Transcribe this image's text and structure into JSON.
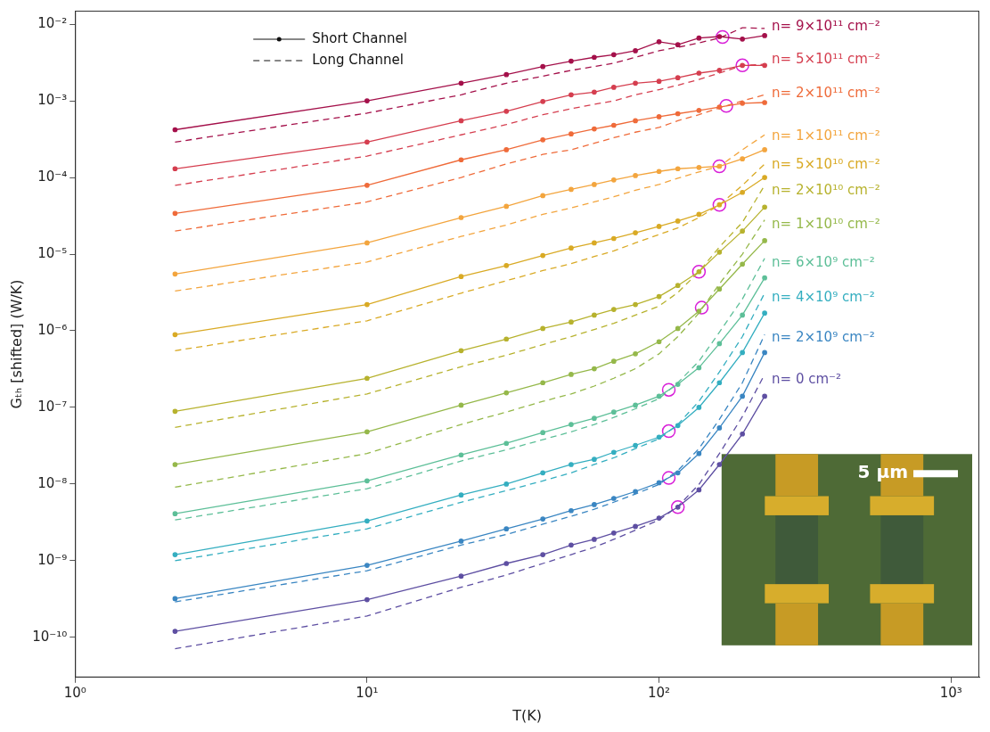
{
  "chart_data": {
    "type": "line",
    "x_label": "T(K)",
    "y_label": "Gₜₕ [shifted] (W/K)",
    "log": true,
    "grid": false,
    "legend": "upper left",
    "x": [
      2.2,
      10,
      21,
      30,
      40,
      50,
      60,
      70,
      83,
      100,
      116,
      137,
      161,
      193,
      230
    ],
    "xlim": [
      1,
      1250
    ],
    "xticks": [
      {
        "value": 1,
        "label": "10⁰"
      },
      {
        "value": 10,
        "label": "10¹"
      },
      {
        "value": 100,
        "label": "10²"
      },
      {
        "value": 1000,
        "label": "10³"
      }
    ],
    "ylim": [
      3e-11,
      0.015
    ],
    "yticks": [
      {
        "value": 1e-10,
        "label": "10⁻¹⁰"
      },
      {
        "value": 1e-09,
        "label": "10⁻⁹"
      },
      {
        "value": 1e-08,
        "label": "10⁻⁸"
      },
      {
        "value": 1e-07,
        "label": "10⁻⁷"
      },
      {
        "value": 1e-06,
        "label": "10⁻⁶"
      },
      {
        "value": 1e-05,
        "label": "10⁻⁵"
      },
      {
        "value": 0.0001,
        "label": "10⁻⁴"
      },
      {
        "value": 0.001,
        "label": "10⁻³"
      },
      {
        "value": 0.01,
        "label": "10⁻²"
      }
    ],
    "groups": [
      {
        "label": "n= 9×10¹¹ cm⁻²",
        "color": "#a4104a",
        "series": [
          {
            "name": "Short Channel",
            "line_style": "solid",
            "marker": "circle",
            "values": [
              0.00042,
              0.001,
              0.0017,
              0.0022,
              0.0028,
              0.0033,
              0.0037,
              0.004,
              0.0045,
              0.0059,
              0.0054,
              0.0066,
              0.0069,
              0.0064,
              0.0071
            ]
          },
          {
            "name": "Long Channel",
            "line_style": "dashed",
            "marker": "none",
            "values": [
              0.00029,
              0.00069,
              0.0012,
              0.0017,
              0.0021,
              0.0025,
              0.0028,
              0.0031,
              0.0037,
              0.0045,
              0.005,
              0.0057,
              0.0066,
              0.009,
              0.0088
            ]
          }
        ]
      },
      {
        "label": "n= 5×10¹¹ cm⁻²",
        "color": "#d53e4f",
        "series": [
          {
            "name": "Short Channel",
            "line_style": "solid",
            "marker": "circle",
            "values": [
              0.00013,
              0.00029,
              0.00055,
              0.00073,
              0.00098,
              0.0012,
              0.0013,
              0.0015,
              0.0017,
              0.0018,
              0.002,
              0.0023,
              0.0025,
              0.0029,
              0.0029
            ]
          },
          {
            "name": "Long Channel",
            "line_style": "dashed",
            "marker": "none",
            "values": [
              7.9e-05,
              0.00019,
              0.00036,
              0.00049,
              0.00066,
              0.00079,
              0.0009,
              0.001,
              0.0012,
              0.0014,
              0.0016,
              0.0019,
              0.0023,
              0.0029,
              0.003
            ]
          }
        ]
      },
      {
        "label": "n= 2×10¹¹ cm⁻²",
        "color": "#ef6b3a",
        "series": [
          {
            "name": "Short Channel",
            "line_style": "solid",
            "marker": "circle",
            "values": [
              3.4e-05,
              7.9e-05,
              0.00017,
              0.00023,
              0.00031,
              0.00037,
              0.00043,
              0.00048,
              0.00055,
              0.00062,
              0.00068,
              0.00075,
              0.00083,
              0.00093,
              0.00095
            ]
          },
          {
            "name": "Long Channel",
            "line_style": "dashed",
            "marker": "none",
            "values": [
              2e-05,
              4.8e-05,
              0.0001,
              0.00015,
              0.0002,
              0.00023,
              0.00028,
              0.00033,
              0.00039,
              0.00045,
              0.00055,
              0.00066,
              0.00081,
              0.001,
              0.0012
            ]
          }
        ]
      },
      {
        "label": "n= 1×10¹¹ cm⁻²",
        "color": "#f3a53e",
        "series": [
          {
            "name": "Short Channel",
            "line_style": "solid",
            "marker": "circle",
            "values": [
              5.5e-06,
              1.4e-05,
              3e-05,
              4.2e-05,
              5.8e-05,
              7e-05,
              8.1e-05,
              9.3e-05,
              0.000106,
              0.00012,
              0.00013,
              0.000135,
              0.00014,
              0.000175,
              0.00023
            ]
          },
          {
            "name": "Long Channel",
            "line_style": "dashed",
            "marker": "none",
            "values": [
              3.3e-06,
              7.9e-06,
              1.7e-05,
              2.4e-05,
              3.3e-05,
              4e-05,
              4.8e-05,
              5.6e-05,
              6.8e-05,
              8.1e-05,
              9.8e-05,
              0.000118,
              0.00014,
              0.00023,
              0.00036
            ]
          }
        ]
      },
      {
        "label": "n= 5×10¹⁰ cm⁻²",
        "color": "#d9aa25",
        "series": [
          {
            "name": "Short Channel",
            "line_style": "solid",
            "marker": "circle",
            "values": [
              8.9e-07,
              2.2e-06,
              5.1e-06,
              7.1e-06,
              9.6e-06,
              1.2e-05,
              1.4e-05,
              1.6e-05,
              1.9e-05,
              2.3e-05,
              2.7e-05,
              3.3e-05,
              4.4e-05,
              6.4e-05,
              0.0001
            ]
          },
          {
            "name": "Long Channel",
            "line_style": "dashed",
            "marker": "none",
            "values": [
              5.5e-07,
              1.35e-06,
              3.1e-06,
              4.5e-06,
              6.1e-06,
              7.5e-06,
              9.3e-06,
              1.1e-05,
              1.4e-05,
              1.8e-05,
              2.2e-05,
              3e-05,
              4.4e-05,
              7.9e-05,
              0.00015
            ]
          }
        ]
      },
      {
        "label": "n= 2×10¹⁰ cm⁻²",
        "color": "#b7b22e",
        "series": [
          {
            "name": "Short Channel",
            "line_style": "solid",
            "marker": "circle",
            "values": [
              8.9e-08,
              2.4e-07,
              5.5e-07,
              7.8e-07,
              1.07e-06,
              1.3e-06,
              1.6e-06,
              1.9e-06,
              2.2e-06,
              2.8e-06,
              3.9e-06,
              5.9e-06,
              1.06e-05,
              2e-05,
              4.1e-05
            ]
          },
          {
            "name": "Long Channel",
            "line_style": "dashed",
            "marker": "none",
            "values": [
              5.5e-08,
              1.5e-07,
              3.4e-07,
              4.8e-07,
              6.6e-07,
              8.4e-07,
              1.04e-06,
              1.25e-06,
              1.6e-06,
              2.1e-06,
              3.15e-06,
              5.9e-06,
              1.24e-05,
              2.6e-05,
              7.9e-05
            ]
          }
        ]
      },
      {
        "label": "n= 1×10¹⁰ cm⁻²",
        "color": "#95b84a",
        "series": [
          {
            "name": "Short Channel",
            "line_style": "solid",
            "marker": "circle",
            "values": [
              1.8e-08,
              4.8e-08,
              1.07e-07,
              1.55e-07,
              2.1e-07,
              2.7e-07,
              3.2e-07,
              4e-07,
              5e-07,
              7.2e-07,
              1.07e-06,
              1.8e-06,
              3.5e-06,
              7.4e-06,
              1.5e-05
            ]
          },
          {
            "name": "Long Channel",
            "line_style": "dashed",
            "marker": "none",
            "values": [
              9.1e-09,
              2.5e-08,
              6e-08,
              8.7e-08,
              1.2e-07,
              1.5e-07,
              1.9e-07,
              2.4e-07,
              3.2e-07,
              5e-07,
              8.4e-07,
              1.7e-06,
              4.1e-06,
              1e-05,
              2.8e-05
            ]
          }
        ]
      },
      {
        "label": "n= 6×10⁹ cm⁻²",
        "color": "#5dbf98",
        "series": [
          {
            "name": "Short Channel",
            "line_style": "solid",
            "marker": "circle",
            "values": [
              4.1e-09,
              1.1e-08,
              2.4e-08,
              3.4e-08,
              4.7e-08,
              6e-08,
              7.2e-08,
              8.7e-08,
              1.07e-07,
              1.4e-07,
              2e-07,
              3.3e-07,
              6.8e-07,
              1.6e-06,
              4.9e-06
            ]
          },
          {
            "name": "Long Channel",
            "line_style": "dashed",
            "marker": "none",
            "values": [
              3.4e-09,
              8.7e-09,
              2e-08,
              2.8e-08,
              3.8e-08,
              4.8e-08,
              6e-08,
              7.4e-08,
              9.6e-08,
              1.3e-07,
              2.1e-07,
              4e-07,
              9.6e-07,
              2.6e-06,
              8.8e-06
            ]
          }
        ]
      },
      {
        "label": "n= 4×10⁹ cm⁻²",
        "color": "#34aec0",
        "series": [
          {
            "name": "Short Channel",
            "line_style": "solid",
            "marker": "circle",
            "values": [
              1.2e-09,
              3.3e-09,
              7.2e-09,
              1e-08,
              1.4e-08,
              1.8e-08,
              2.1e-08,
              2.6e-08,
              3.2e-08,
              4.1e-08,
              5.8e-08,
              1e-07,
              2.1e-07,
              5.2e-07,
              1.7e-06
            ]
          },
          {
            "name": "Long Channel",
            "line_style": "dashed",
            "marker": "none",
            "values": [
              1e-09,
              2.6e-09,
              5.8e-09,
              8.2e-09,
              1.1e-08,
              1.4e-08,
              1.8e-08,
              2.2e-08,
              2.9e-08,
              3.9e-08,
              6e-08,
              1.2e-07,
              2.9e-07,
              8.4e-07,
              3.1e-06
            ]
          }
        ]
      },
      {
        "label": "n= 2×10⁹ cm⁻²",
        "color": "#3a86c2",
        "series": [
          {
            "name": "Short Channel",
            "line_style": "solid",
            "marker": "circle",
            "values": [
              3.2e-10,
              8.7e-10,
              1.8e-09,
              2.6e-09,
              3.5e-09,
              4.5e-09,
              5.4e-09,
              6.5e-09,
              8e-09,
              1.04e-08,
              1.4e-08,
              2.5e-08,
              5.4e-08,
              1.4e-07,
              5.2e-07
            ]
          },
          {
            "name": "Long Channel",
            "line_style": "dashed",
            "marker": "none",
            "values": [
              2.9e-10,
              7.4e-10,
              1.6e-09,
              2.2e-09,
              3e-09,
              3.8e-09,
              4.7e-09,
              5.8e-09,
              7.4e-09,
              9.9e-09,
              1.5e-08,
              2.9e-08,
              7e-08,
              2.1e-07,
              8.9e-07
            ]
          }
        ]
      },
      {
        "label": "n= 0 cm⁻²",
        "color": "#5e4fa2",
        "series": [
          {
            "name": "Short Channel",
            "line_style": "solid",
            "marker": "circle",
            "values": [
              1.2e-10,
              3.1e-10,
              6.3e-10,
              9.2e-10,
              1.2e-09,
              1.6e-09,
              1.9e-09,
              2.3e-09,
              2.8e-09,
              3.6e-09,
              5e-09,
              8.4e-09,
              1.8e-08,
              4.5e-08,
              1.4e-07
            ]
          },
          {
            "name": "Long Channel",
            "line_style": "dashed",
            "marker": "none",
            "values": [
              7.1e-11,
              1.9e-10,
              4.5e-10,
              6.5e-10,
              9.2e-10,
              1.2e-09,
              1.5e-09,
              1.9e-09,
              2.5e-09,
              3.4e-09,
              5.1e-09,
              9.9e-09,
              2.5e-08,
              7.6e-08,
              2.7e-07
            ]
          }
        ]
      }
    ],
    "crossovers": {
      "color": "#d81fd8",
      "marker": "circle",
      "points": [
        [
          165,
          0.0068
        ],
        [
          193,
          0.0029
        ],
        [
          170,
          0.00086
        ],
        [
          161,
          0.00014
        ],
        [
          161,
          4.4e-05
        ],
        [
          137,
          5.9e-06
        ],
        [
          140,
          2e-06
        ],
        [
          108,
          1.7e-07
        ],
        [
          108,
          4.9e-08
        ],
        [
          108,
          1.2e-08
        ],
        [
          116,
          5e-09
        ]
      ]
    },
    "inset": {
      "scale_bar": "5 µm"
    }
  }
}
